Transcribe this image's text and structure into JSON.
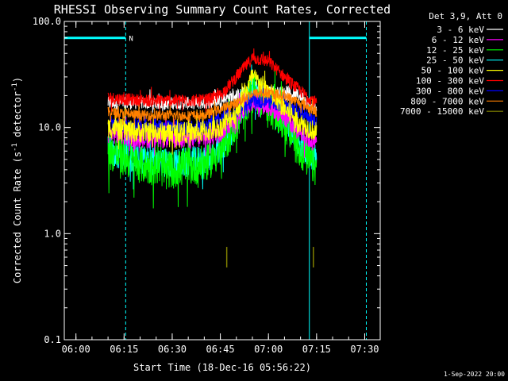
{
  "chart_data": {
    "type": "line",
    "title": "RHESSI Observing Summary Count Rates, Corrected",
    "xlabel": "Start Time (18-Dec-16 05:56:22)",
    "ylabel": "Corrected Count Rate (s⁻¹ detector⁻¹)",
    "ylabel_parts": {
      "main": "Corrected Count Rate (s",
      "exp1": "-1",
      "mid": " detector",
      "exp2": "-1",
      "end": ")"
    },
    "yscale": "log",
    "ylim": [
      0.1,
      100
    ],
    "xlim": [
      "05:56:22",
      "07:34:50"
    ],
    "y_ticks": [
      {
        "value": 0.1,
        "label": "0.1"
      },
      {
        "value": 1,
        "label": "1.0"
      },
      {
        "value": 10,
        "label": "10.0"
      },
      {
        "value": 100,
        "label": "100.0"
      }
    ],
    "x_ticks": [
      {
        "value": "06:00",
        "label": "06:00"
      },
      {
        "value": "06:15",
        "label": "06:15"
      },
      {
        "value": "06:30",
        "label": "06:30"
      },
      {
        "value": "06:45",
        "label": "06:45"
      },
      {
        "value": "07:00",
        "label": "07:00"
      },
      {
        "value": "07:15",
        "label": "07:15"
      },
      {
        "value": "07:30",
        "label": "07:30"
      }
    ],
    "legend_header": "Det 3,9, Att 0",
    "legend_placement": "outside-right",
    "series": [
      {
        "name": "3 - 6 keV",
        "color": "#ffffff",
        "x": [
          "06:10",
          "06:20",
          "06:30",
          "06:40",
          "06:50",
          "06:55",
          "07:00",
          "07:05",
          "07:10",
          "07:15"
        ],
        "y": [
          17,
          17,
          17,
          17,
          20,
          22,
          22,
          21,
          20,
          15
        ]
      },
      {
        "name": "6 - 12 keV",
        "color": "#ff00ff",
        "x": [
          "06:10",
          "06:20",
          "06:30",
          "06:40",
          "06:45",
          "06:50",
          "06:55",
          "07:00",
          "07:05",
          "07:10",
          "07:15"
        ],
        "y": [
          9,
          8,
          8,
          8,
          9,
          13,
          18,
          16,
          13,
          9,
          7
        ]
      },
      {
        "name": "12 - 25 keV",
        "color": "#00ff00",
        "x": [
          "06:10",
          "06:20",
          "06:30",
          "06:40",
          "06:45",
          "06:50",
          "06:55",
          "07:00",
          "07:05",
          "07:10",
          "07:15"
        ],
        "y": [
          6,
          4.5,
          4,
          4.5,
          6,
          11,
          22,
          16,
          11,
          6,
          4
        ]
      },
      {
        "name": "25 - 50 keV",
        "color": "#00ffff",
        "x": [
          "06:10",
          "06:20",
          "06:30",
          "06:40",
          "06:45",
          "06:50",
          "06:55",
          "07:00",
          "07:05",
          "07:10",
          "07:15"
        ],
        "y": [
          6,
          5,
          4.5,
          5,
          6,
          11,
          24,
          18,
          12,
          7,
          5
        ]
      },
      {
        "name": "50 - 100 keV",
        "color": "#ffff00",
        "x": [
          "06:10",
          "06:20",
          "06:30",
          "06:40",
          "06:45",
          "06:50",
          "06:55",
          "07:00",
          "07:05",
          "07:10",
          "07:15"
        ],
        "y": [
          10,
          9,
          9,
          9,
          10,
          14,
          30,
          22,
          15,
          11,
          9
        ]
      },
      {
        "name": "100 - 300 keV",
        "color": "#ff0000",
        "x": [
          "06:10",
          "06:20",
          "06:30",
          "06:40",
          "06:45",
          "06:50",
          "06:55",
          "07:00",
          "07:05",
          "07:10",
          "07:15"
        ],
        "y": [
          19,
          18,
          18,
          18,
          20,
          30,
          45,
          42,
          30,
          22,
          17
        ]
      },
      {
        "name": "300 - 800 keV",
        "color": "#0000ff",
        "x": [
          "06:10",
          "06:20",
          "06:30",
          "06:40",
          "06:50",
          "06:55",
          "07:00",
          "07:05",
          "07:10",
          "07:15"
        ],
        "y": [
          11,
          10,
          10,
          10,
          14,
          18,
          18,
          16,
          14,
          11
        ]
      },
      {
        "name": "800 - 7000 keV",
        "color": "#ff8000",
        "x": [
          "06:10",
          "06:20",
          "06:30",
          "06:40",
          "06:50",
          "06:55",
          "07:00",
          "07:05",
          "07:10",
          "07:15"
        ],
        "y": [
          14,
          13,
          13,
          13,
          17,
          21,
          21,
          20,
          17,
          14
        ]
      },
      {
        "name": "7000 - 15000 keV",
        "color": "#808000",
        "x": [
          "06:47",
          "07:14"
        ],
        "y": [
          0.6,
          0.6
        ]
      }
    ],
    "annotations": [
      {
        "text": "N",
        "color": "#00ffff",
        "at": "06:15"
      }
    ],
    "footer_date": "1-Sep-2022 20:00"
  }
}
